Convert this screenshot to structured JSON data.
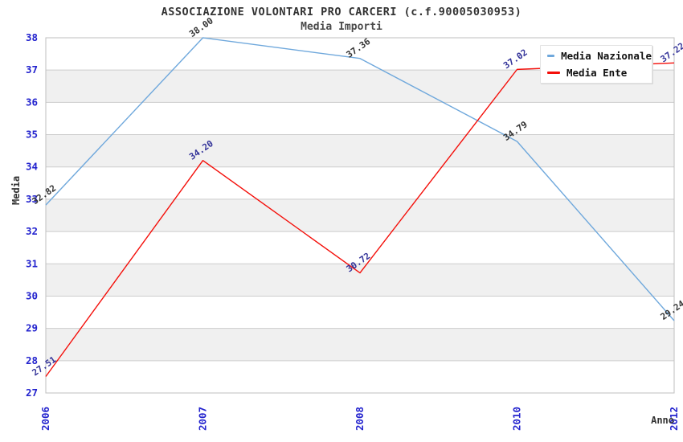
{
  "title": "ASSOCIAZIONE VOLONTARI PRO CARCERI (c.f.90005030953)",
  "subtitle": "Media Importi",
  "chart_data": {
    "type": "line",
    "categories": [
      "2006",
      "2007",
      "2008",
      "2010",
      "2012"
    ],
    "series": [
      {
        "name": "Media Nazionale",
        "values": [
          32.82,
          38.0,
          37.36,
          34.79,
          29.24
        ],
        "color": "#6FA8DC",
        "label_color": "#333333"
      },
      {
        "name": "Media Ente",
        "values": [
          27.51,
          34.2,
          30.72,
          37.02,
          37.22
        ],
        "color": "#F40F0A",
        "label_color": "#333399"
      }
    ],
    "xlabel": "Anno",
    "ylabel": "Media",
    "ylim": [
      27,
      38
    ],
    "ytick_step": 1,
    "grid": true,
    "legend_position": "top-right",
    "band_colors": [
      "#FFFFFF",
      "#F0F0F0"
    ],
    "axis_tick_color": "#2323CE",
    "grid_color": "#CCCCCC",
    "border_color": "#BFBFBF",
    "value_label_decimals": 2
  }
}
